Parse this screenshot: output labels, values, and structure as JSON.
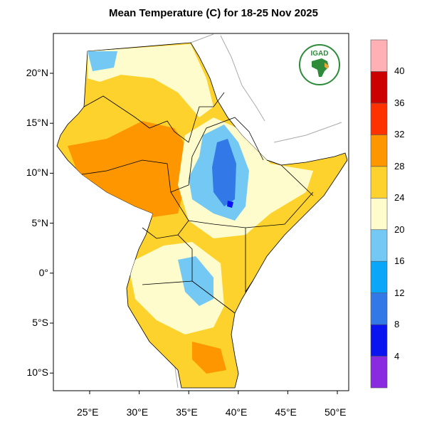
{
  "title": "Mean Temperature (C) for 18-25 Nov 2025",
  "logo": {
    "text": "IGAD",
    "colors": {
      "ring": "#2e8b3a",
      "africa": "#2e8b3a",
      "region": "#e8a93a"
    }
  },
  "lat_ticks": [
    "20°N",
    "15°N",
    "10°N",
    "5°N",
    "0°",
    "5°S",
    "10°S"
  ],
  "lon_ticks": [
    "25°E",
    "30°E",
    "35°E",
    "40°E",
    "45°E",
    "50°E"
  ],
  "colorbar": {
    "labels": [
      "4",
      "8",
      "12",
      "16",
      "20",
      "24",
      "28",
      "32",
      "36",
      "40"
    ],
    "colors": [
      "#8a2be2",
      "#0a14f0",
      "#3278e6",
      "#0aa6fa",
      "#74c8f4",
      "#fefccc",
      "#fed22c",
      "#fe9600",
      "#fe3200",
      "#cc0000",
      "#ffb0b4"
    ]
  }
}
